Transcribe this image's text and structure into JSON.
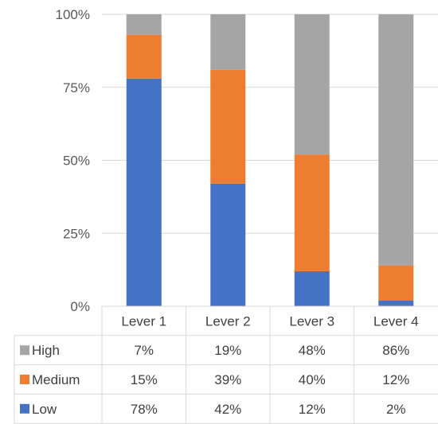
{
  "chart_data": {
    "type": "bar",
    "stacked": true,
    "percent_stacked": true,
    "categories": [
      "Lever 1",
      "Lever 2",
      "Lever 3",
      "Lever 4"
    ],
    "series": [
      {
        "name": "Low",
        "color": "#4472C4",
        "values": [
          78,
          42,
          12,
          2
        ],
        "labels": [
          "78%",
          "42%",
          "12%",
          "2%"
        ]
      },
      {
        "name": "Medium",
        "color": "#ED7D31",
        "values": [
          15,
          39,
          40,
          12
        ],
        "labels": [
          "15%",
          "39%",
          "40%",
          "12%"
        ]
      },
      {
        "name": "High",
        "color": "#A5A5A5",
        "values": [
          7,
          19,
          48,
          86
        ],
        "labels": [
          "7%",
          "19%",
          "48%",
          "86%"
        ]
      }
    ],
    "ylim": [
      0,
      100
    ],
    "y_ticks": [
      0,
      25,
      50,
      75,
      100
    ],
    "y_tick_labels": [
      "0%",
      "25%",
      "50%",
      "75%",
      "100%"
    ],
    "title": "",
    "xlabel": "",
    "ylabel": "",
    "grid": true,
    "data_table": {
      "row_order": [
        "High",
        "Medium",
        "Low"
      ]
    }
  }
}
